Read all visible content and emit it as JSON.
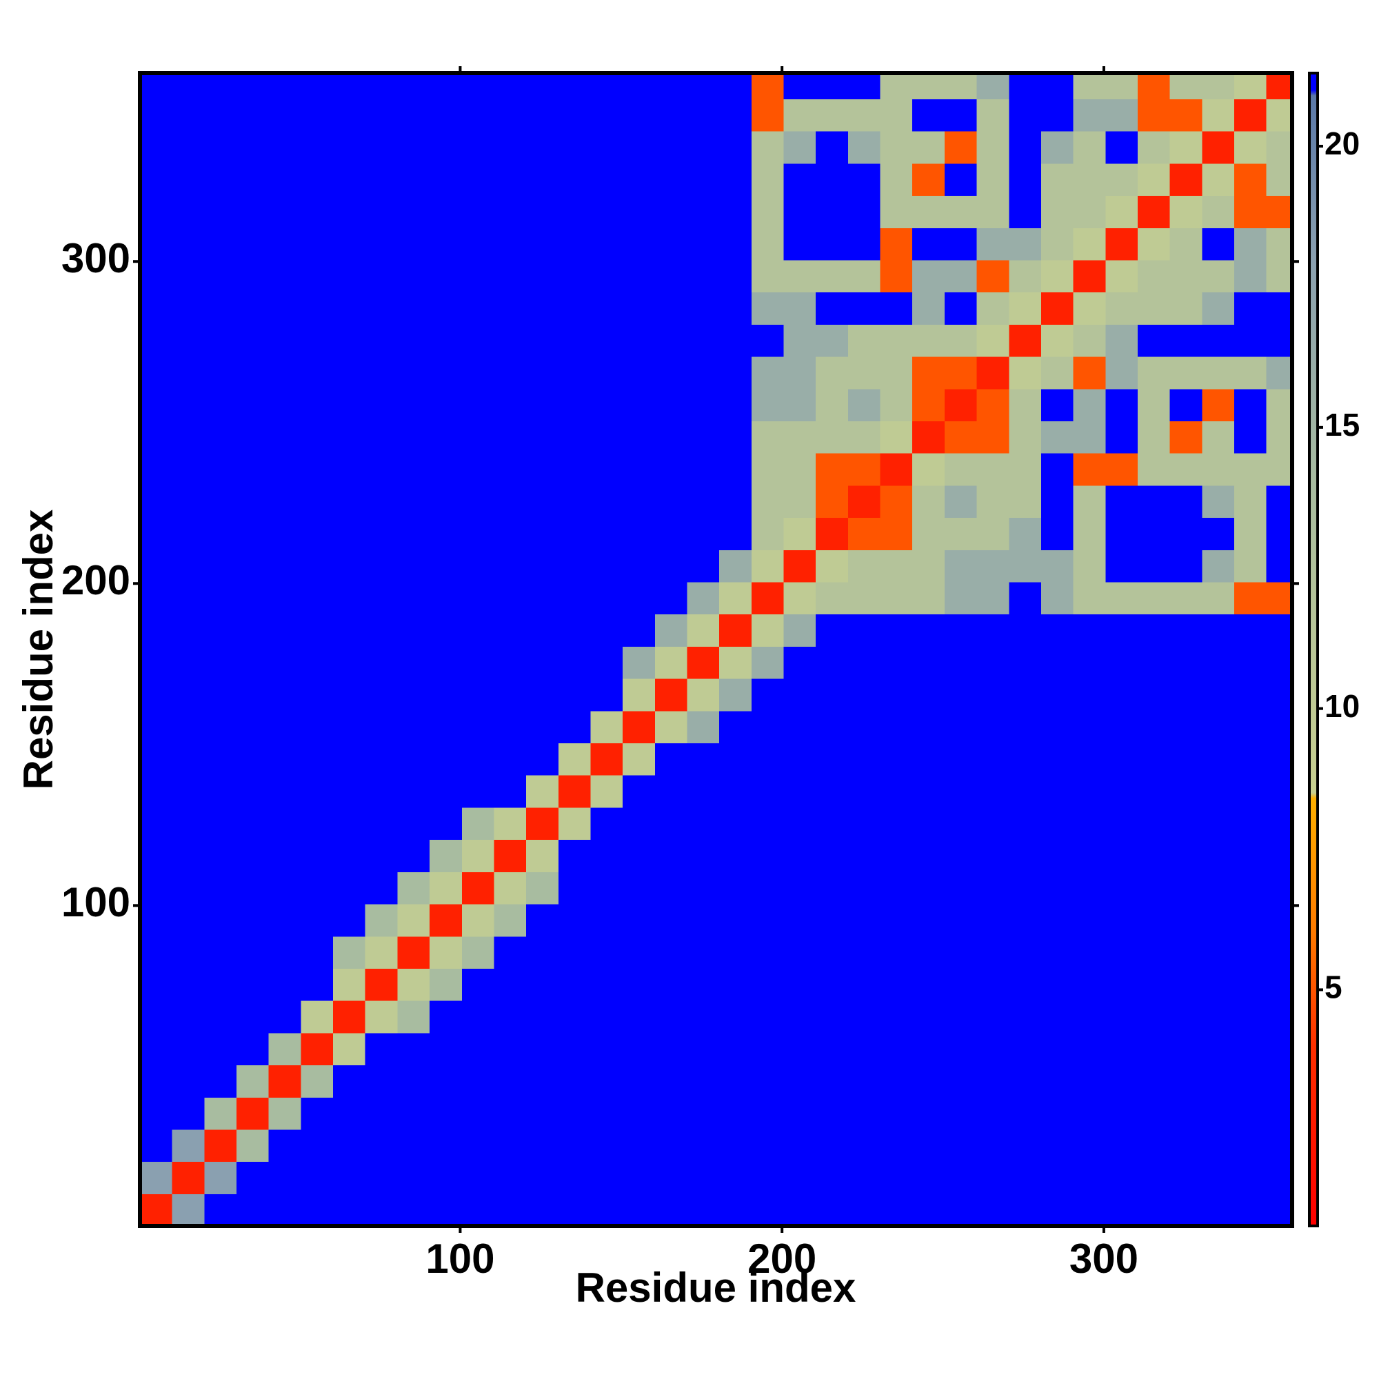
{
  "chart_data": {
    "type": "heatmap",
    "xlabel": "Residue index",
    "ylabel": "Residue index",
    "xlim": [
      0.5,
      358.5
    ],
    "ylim": [
      0.5,
      358.5
    ],
    "xticks": [
      100,
      200,
      300
    ],
    "yticks": [
      100,
      200,
      300
    ],
    "x_edges": [
      0.5,
      10.5,
      20.5,
      30.5,
      40.5,
      50.5,
      60.5,
      70.5,
      80.5,
      90.5,
      100.5,
      110.5,
      120.5,
      130.5,
      140.5,
      150.5,
      160.5,
      170.5,
      180.5,
      190.5,
      200.5,
      210.5,
      220.5,
      230.5,
      240.5,
      250.5,
      260.5,
      270.5,
      280.5,
      290.5,
      300.5,
      310.5,
      320.5,
      330.5,
      340.5,
      350.5,
      358.5
    ],
    "y_edges": [
      0.5,
      10.5,
      20.5,
      30.5,
      40.5,
      50.5,
      60.5,
      70.5,
      80.5,
      90.5,
      100.5,
      110.5,
      120.5,
      130.5,
      140.5,
      150.5,
      160.5,
      170.5,
      180.5,
      190.5,
      200.5,
      210.5,
      220.5,
      230.5,
      240.5,
      250.5,
      260.5,
      270.5,
      280.5,
      290.5,
      300.5,
      310.5,
      320.5,
      330.5,
      340.5,
      350.5,
      358.5
    ],
    "zlim": [
      0.8,
      21.3
    ],
    "zticks": [
      5,
      10,
      15,
      20
    ],
    "colorscale": [
      [
        0.8,
        "#ff0000"
      ],
      [
        4,
        "#ff3000"
      ],
      [
        6,
        "#ff7a00"
      ],
      [
        8.4,
        "#ffb000"
      ],
      [
        8.5,
        "#c8d090"
      ],
      [
        14,
        "#a8bca0"
      ],
      [
        18,
        "#8aa0b0"
      ],
      [
        20.9,
        "#5a78a8"
      ],
      [
        21,
        "#0000ff"
      ],
      [
        21.3,
        "#0000ff"
      ]
    ],
    "z": [
      [
        3,
        18,
        21,
        21,
        21,
        21,
        21,
        21,
        21,
        21,
        21,
        21,
        21,
        21,
        21,
        21,
        21,
        21,
        21,
        21,
        21,
        21,
        21,
        21,
        21,
        21,
        21,
        21,
        21,
        21,
        21,
        21,
        21,
        21,
        21,
        21
      ],
      [
        18,
        3,
        18,
        21,
        21,
        21,
        21,
        21,
        21,
        21,
        21,
        21,
        21,
        21,
        21,
        21,
        21,
        21,
        21,
        21,
        21,
        21,
        21,
        21,
        21,
        21,
        21,
        21,
        21,
        21,
        21,
        21,
        21,
        21,
        21,
        21
      ],
      [
        21,
        18,
        3,
        14,
        21,
        21,
        21,
        21,
        21,
        21,
        21,
        21,
        21,
        21,
        21,
        21,
        21,
        21,
        21,
        21,
        21,
        21,
        21,
        21,
        21,
        21,
        21,
        21,
        21,
        21,
        21,
        21,
        21,
        21,
        21,
        21
      ],
      [
        21,
        21,
        14,
        3,
        14,
        21,
        21,
        21,
        21,
        21,
        21,
        21,
        21,
        21,
        21,
        21,
        21,
        21,
        21,
        21,
        21,
        21,
        21,
        21,
        21,
        21,
        21,
        21,
        21,
        21,
        21,
        21,
        21,
        21,
        21,
        21
      ],
      [
        21,
        21,
        21,
        14,
        3,
        14,
        21,
        21,
        21,
        21,
        21,
        21,
        21,
        21,
        21,
        21,
        21,
        21,
        21,
        21,
        21,
        21,
        21,
        21,
        21,
        21,
        21,
        21,
        21,
        21,
        21,
        21,
        21,
        21,
        21,
        21
      ],
      [
        21,
        21,
        21,
        21,
        14,
        3,
        10,
        21,
        21,
        21,
        21,
        21,
        21,
        21,
        21,
        21,
        21,
        21,
        21,
        21,
        21,
        21,
        21,
        21,
        21,
        21,
        21,
        21,
        21,
        21,
        21,
        21,
        21,
        21,
        21,
        21
      ],
      [
        21,
        21,
        21,
        21,
        21,
        10,
        3,
        10,
        14,
        21,
        21,
        21,
        21,
        21,
        21,
        21,
        21,
        21,
        21,
        21,
        21,
        21,
        21,
        21,
        21,
        21,
        21,
        21,
        21,
        21,
        21,
        21,
        21,
        21,
        21,
        21
      ],
      [
        21,
        21,
        21,
        21,
        21,
        21,
        10,
        3,
        10,
        14,
        21,
        21,
        21,
        21,
        21,
        21,
        21,
        21,
        21,
        21,
        21,
        21,
        21,
        21,
        21,
        21,
        21,
        21,
        21,
        21,
        21,
        21,
        21,
        21,
        21,
        21
      ],
      [
        21,
        21,
        21,
        21,
        21,
        21,
        14,
        10,
        3,
        10,
        14,
        21,
        21,
        21,
        21,
        21,
        21,
        21,
        21,
        21,
        21,
        21,
        21,
        21,
        21,
        21,
        21,
        21,
        21,
        21,
        21,
        21,
        21,
        21,
        21,
        21
      ],
      [
        21,
        21,
        21,
        21,
        21,
        21,
        21,
        14,
        10,
        3,
        10,
        14,
        21,
        21,
        21,
        21,
        21,
        21,
        21,
        21,
        21,
        21,
        21,
        21,
        21,
        21,
        21,
        21,
        21,
        21,
        21,
        21,
        21,
        21,
        21,
        21
      ],
      [
        21,
        21,
        21,
        21,
        21,
        21,
        21,
        21,
        14,
        10,
        3,
        10,
        14,
        21,
        21,
        21,
        21,
        21,
        21,
        21,
        21,
        21,
        21,
        21,
        21,
        21,
        21,
        21,
        21,
        21,
        21,
        21,
        21,
        21,
        21,
        21
      ],
      [
        21,
        21,
        21,
        21,
        21,
        21,
        21,
        21,
        21,
        14,
        10,
        3,
        10,
        21,
        21,
        21,
        21,
        21,
        21,
        21,
        21,
        21,
        21,
        21,
        21,
        21,
        21,
        21,
        21,
        21,
        21,
        21,
        21,
        21,
        21,
        21
      ],
      [
        21,
        21,
        21,
        21,
        21,
        21,
        21,
        21,
        21,
        21,
        14,
        10,
        3,
        10,
        21,
        21,
        21,
        21,
        21,
        21,
        21,
        21,
        21,
        21,
        21,
        21,
        21,
        21,
        21,
        21,
        21,
        21,
        21,
        21,
        21,
        21
      ],
      [
        21,
        21,
        21,
        21,
        21,
        21,
        21,
        21,
        21,
        21,
        21,
        21,
        10,
        3,
        10,
        21,
        21,
        21,
        21,
        21,
        21,
        21,
        21,
        21,
        21,
        21,
        21,
        21,
        21,
        21,
        21,
        21,
        21,
        21,
        21,
        21
      ],
      [
        21,
        21,
        21,
        21,
        21,
        21,
        21,
        21,
        21,
        21,
        21,
        21,
        21,
        10,
        3,
        10,
        21,
        21,
        21,
        21,
        21,
        21,
        21,
        21,
        21,
        21,
        21,
        21,
        21,
        21,
        21,
        21,
        21,
        21,
        21,
        21
      ],
      [
        21,
        21,
        21,
        21,
        21,
        21,
        21,
        21,
        21,
        21,
        21,
        21,
        21,
        21,
        10,
        3,
        10,
        16,
        21,
        21,
        21,
        21,
        21,
        21,
        21,
        21,
        21,
        21,
        21,
        21,
        21,
        21,
        21,
        21,
        21,
        21
      ],
      [
        21,
        21,
        21,
        21,
        21,
        21,
        21,
        21,
        21,
        21,
        21,
        21,
        21,
        21,
        21,
        10,
        3,
        10,
        16,
        21,
        21,
        21,
        21,
        21,
        21,
        21,
        21,
        21,
        21,
        21,
        21,
        21,
        21,
        21,
        21,
        21
      ],
      [
        21,
        21,
        21,
        21,
        21,
        21,
        21,
        21,
        21,
        21,
        21,
        21,
        21,
        21,
        21,
        16,
        10,
        3,
        10,
        16,
        21,
        21,
        21,
        21,
        21,
        21,
        21,
        21,
        21,
        21,
        21,
        21,
        21,
        21,
        21,
        21
      ],
      [
        21,
        21,
        21,
        21,
        21,
        21,
        21,
        21,
        21,
        21,
        21,
        21,
        21,
        21,
        21,
        21,
        16,
        10,
        3,
        10,
        16,
        21,
        21,
        21,
        21,
        21,
        21,
        21,
        21,
        21,
        21,
        21,
        21,
        21,
        21,
        21
      ],
      [
        21,
        21,
        21,
        21,
        21,
        21,
        21,
        21,
        21,
        21,
        21,
        21,
        21,
        21,
        21,
        21,
        21,
        16,
        10,
        3,
        10,
        12,
        12,
        12,
        12,
        16,
        16,
        21,
        16,
        12,
        12,
        12,
        12,
        12,
        5,
        5
      ],
      [
        21,
        21,
        21,
        21,
        21,
        21,
        21,
        21,
        21,
        21,
        21,
        21,
        21,
        21,
        21,
        21,
        21,
        21,
        16,
        10,
        3,
        10,
        12,
        12,
        12,
        16,
        16,
        16,
        16,
        12,
        21,
        21,
        21,
        16,
        12,
        21
      ],
      [
        21,
        21,
        21,
        21,
        21,
        21,
        21,
        21,
        21,
        21,
        21,
        21,
        21,
        21,
        21,
        21,
        21,
        21,
        21,
        12,
        10,
        3,
        5,
        5,
        12,
        12,
        12,
        16,
        21,
        12,
        21,
        21,
        21,
        21,
        12,
        21
      ],
      [
        21,
        21,
        21,
        21,
        21,
        21,
        21,
        21,
        21,
        21,
        21,
        21,
        21,
        21,
        21,
        21,
        21,
        21,
        21,
        12,
        12,
        5,
        3,
        5,
        12,
        16,
        12,
        12,
        21,
        12,
        21,
        21,
        21,
        16,
        12,
        21
      ],
      [
        21,
        21,
        21,
        21,
        21,
        21,
        21,
        21,
        21,
        21,
        21,
        21,
        21,
        21,
        21,
        21,
        21,
        21,
        21,
        12,
        12,
        5,
        5,
        3,
        10,
        12,
        12,
        12,
        21,
        5,
        5,
        12,
        12,
        12,
        12,
        12
      ],
      [
        21,
        21,
        21,
        21,
        21,
        21,
        21,
        21,
        21,
        21,
        21,
        21,
        21,
        21,
        21,
        21,
        21,
        21,
        21,
        12,
        12,
        12,
        12,
        10,
        3,
        5,
        5,
        12,
        16,
        16,
        21,
        12,
        5,
        12,
        21,
        12
      ],
      [
        21,
        21,
        21,
        21,
        21,
        21,
        21,
        21,
        21,
        21,
        21,
        21,
        21,
        21,
        21,
        21,
        21,
        21,
        21,
        16,
        16,
        12,
        16,
        12,
        5,
        3,
        5,
        12,
        21,
        16,
        21,
        12,
        21,
        5,
        21,
        12
      ],
      [
        21,
        21,
        21,
        21,
        21,
        21,
        21,
        21,
        21,
        21,
        21,
        21,
        21,
        21,
        21,
        21,
        21,
        21,
        21,
        16,
        16,
        12,
        12,
        12,
        5,
        5,
        3,
        10,
        12,
        5,
        16,
        12,
        12,
        12,
        12,
        16
      ],
      [
        21,
        21,
        21,
        21,
        21,
        21,
        21,
        21,
        21,
        21,
        21,
        21,
        21,
        21,
        21,
        21,
        21,
        21,
        21,
        21,
        16,
        16,
        12,
        12,
        12,
        12,
        10,
        3,
        10,
        12,
        16,
        21,
        21,
        21,
        21,
        21
      ],
      [
        21,
        21,
        21,
        21,
        21,
        21,
        21,
        21,
        21,
        21,
        21,
        21,
        21,
        21,
        21,
        21,
        21,
        21,
        21,
        16,
        16,
        21,
        21,
        21,
        16,
        21,
        12,
        10,
        3,
        10,
        12,
        12,
        12,
        16,
        21,
        21
      ],
      [
        21,
        21,
        21,
        21,
        21,
        21,
        21,
        21,
        21,
        21,
        21,
        21,
        21,
        21,
        21,
        21,
        21,
        21,
        21,
        12,
        12,
        12,
        12,
        5,
        16,
        16,
        5,
        12,
        10,
        3,
        10,
        12,
        12,
        12,
        16,
        12
      ],
      [
        21,
        21,
        21,
        21,
        21,
        21,
        21,
        21,
        21,
        21,
        21,
        21,
        21,
        21,
        21,
        21,
        21,
        21,
        21,
        12,
        21,
        21,
        21,
        5,
        21,
        21,
        16,
        16,
        12,
        10,
        3,
        10,
        12,
        21,
        16,
        12
      ],
      [
        21,
        21,
        21,
        21,
        21,
        21,
        21,
        21,
        21,
        21,
        21,
        21,
        21,
        21,
        21,
        21,
        21,
        21,
        21,
        12,
        21,
        21,
        21,
        12,
        12,
        12,
        12,
        21,
        12,
        12,
        10,
        3,
        10,
        12,
        5,
        5
      ],
      [
        21,
        21,
        21,
        21,
        21,
        21,
        21,
        21,
        21,
        21,
        21,
        21,
        21,
        21,
        21,
        21,
        21,
        21,
        21,
        12,
        21,
        21,
        21,
        12,
        5,
        21,
        12,
        21,
        12,
        12,
        12,
        10,
        3,
        10,
        5,
        12
      ],
      [
        21,
        21,
        21,
        21,
        21,
        21,
        21,
        21,
        21,
        21,
        21,
        21,
        21,
        21,
        21,
        21,
        21,
        21,
        21,
        12,
        16,
        21,
        16,
        12,
        12,
        5,
        12,
        21,
        16,
        12,
        21,
        12,
        10,
        3,
        10,
        12
      ],
      [
        21,
        21,
        21,
        21,
        21,
        21,
        21,
        21,
        21,
        21,
        21,
        21,
        21,
        21,
        21,
        21,
        21,
        21,
        21,
        5,
        12,
        12,
        12,
        12,
        21,
        21,
        12,
        21,
        21,
        16,
        16,
        5,
        5,
        10,
        3,
        10
      ],
      [
        21,
        21,
        21,
        21,
        21,
        21,
        21,
        21,
        21,
        21,
        21,
        21,
        21,
        21,
        21,
        21,
        21,
        21,
        21,
        5,
        21,
        21,
        21,
        12,
        12,
        12,
        16,
        21,
        21,
        12,
        12,
        5,
        12,
        12,
        10,
        3
      ]
    ]
  }
}
